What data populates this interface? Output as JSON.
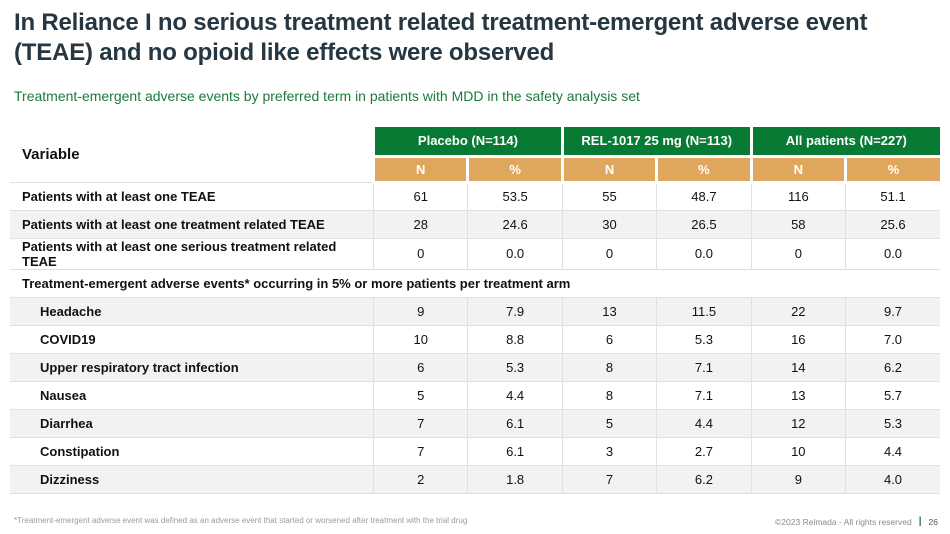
{
  "slide": {
    "title": "In Reliance I no serious treatment related treatment-emergent adverse event (TEAE) and no opioid like effects were observed",
    "subtitle": "Treatment-emergent adverse events by preferred term in patients with MDD in the safety analysis set"
  },
  "table": {
    "variable_header": "Variable",
    "groups": [
      {
        "label": "Placebo (N=114)"
      },
      {
        "label": "REL-1017 25 mg (N=113)"
      },
      {
        "label": "All patients (N=227)"
      }
    ],
    "subheaders": [
      "N",
      "%",
      "N",
      "%",
      "N",
      "%"
    ],
    "rows": [
      {
        "type": "data",
        "indent": false,
        "label": "Patients with at least one TEAE",
        "values": [
          "61",
          "53.5",
          "55",
          "48.7",
          "116",
          "51.1"
        ]
      },
      {
        "type": "data",
        "indent": false,
        "label": "Patients with at least one treatment related TEAE",
        "values": [
          "28",
          "24.6",
          "30",
          "26.5",
          "58",
          "25.6"
        ]
      },
      {
        "type": "data",
        "indent": false,
        "label": "Patients with at least one serious treatment related TEAE",
        "values": [
          "0",
          "0.0",
          "0",
          "0.0",
          "0",
          "0.0"
        ]
      },
      {
        "type": "section",
        "label": "Treatment-emergent adverse events* occurring in 5% or more patients per treatment arm"
      },
      {
        "type": "data",
        "indent": true,
        "label": "Headache",
        "values": [
          "9",
          "7.9",
          "13",
          "11.5",
          "22",
          "9.7"
        ]
      },
      {
        "type": "data",
        "indent": true,
        "label": "COVID19",
        "values": [
          "10",
          "8.8",
          "6",
          "5.3",
          "16",
          "7.0"
        ]
      },
      {
        "type": "data",
        "indent": true,
        "label": "Upper respiratory tract infection",
        "values": [
          "6",
          "5.3",
          "8",
          "7.1",
          "14",
          "6.2"
        ]
      },
      {
        "type": "data",
        "indent": true,
        "label": "Nausea",
        "values": [
          "5",
          "4.4",
          "8",
          "7.1",
          "13",
          "5.7"
        ]
      },
      {
        "type": "data",
        "indent": true,
        "label": "Diarrhea",
        "values": [
          "7",
          "6.1",
          "5",
          "4.4",
          "12",
          "5.3"
        ]
      },
      {
        "type": "data",
        "indent": true,
        "label": "Constipation",
        "values": [
          "7",
          "6.1",
          "3",
          "2.7",
          "10",
          "4.4"
        ]
      },
      {
        "type": "data",
        "indent": true,
        "label": "Dizziness",
        "values": [
          "2",
          "1.8",
          "7",
          "6.2",
          "9",
          "4.0"
        ]
      }
    ]
  },
  "footer": {
    "footnote": "*Treatment-emergent adverse event was defined as an adverse event that started or worsened after treatment with the trial drug",
    "copyright": "©2023 Relmada - All rights reserved",
    "separator": "|",
    "page_number": "26"
  },
  "colors": {
    "header_green": "#077A33",
    "subheader_tan": "#DFA65E",
    "title_dark": "#263742",
    "subtitle_green": "#1B7A3D",
    "stripe_gray": "#F2F2F2",
    "border_gray": "#E0E0E0"
  }
}
